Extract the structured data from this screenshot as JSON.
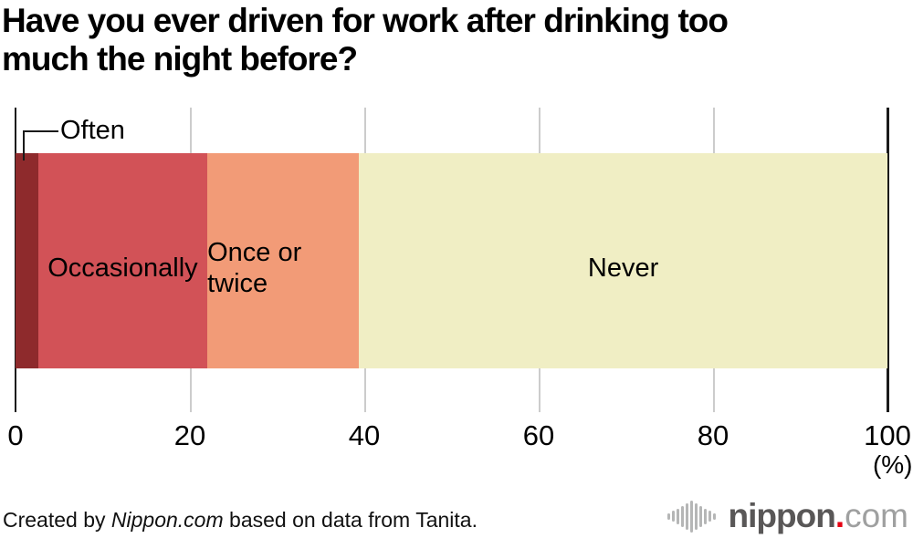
{
  "title": {
    "line1": "Have you ever driven for work after drinking too",
    "line2": "much the night before?"
  },
  "chart_data": {
    "type": "bar",
    "orientation": "horizontal-stacked",
    "title": "Have you ever driven for work after drinking too much the night before?",
    "segments": [
      {
        "label": "Often",
        "value": 2.6,
        "color": "#8e2a2c",
        "label_placement": "callout-above"
      },
      {
        "label": "Occasionally",
        "value": 19.4,
        "color": "#d25257",
        "label_placement": "inside"
      },
      {
        "label": "Once or twice",
        "value": 17.4,
        "color": "#f29b77",
        "label_placement": "inside"
      },
      {
        "label": "Never",
        "value": 60.6,
        "color": "#f0eec4",
        "label_placement": "inside"
      }
    ],
    "xlim": [
      0,
      100
    ],
    "x_ticks": [
      "0",
      "20",
      "40",
      "60",
      "80",
      "100"
    ],
    "x_unit_label": "(%)",
    "grid": true,
    "gridline_color": "#cccccc",
    "axis_color": "#1a1a1a"
  },
  "footer": {
    "credit_prefix": "Created by ",
    "credit_source": "Nippon.com",
    "credit_suffix": " based on data from Tanita.",
    "logo": {
      "mark": "waveform-bars-icon",
      "name": "nippon",
      "dot": ".",
      "tld": "com",
      "name_color": "#595757",
      "dot_color": "#e60012",
      "tld_color": "#9fa0a0",
      "mark_color": "#b5b6b6",
      "mark_bar_heights": [
        7,
        12,
        17,
        23,
        29,
        35,
        29,
        23,
        17,
        12,
        7
      ]
    }
  }
}
